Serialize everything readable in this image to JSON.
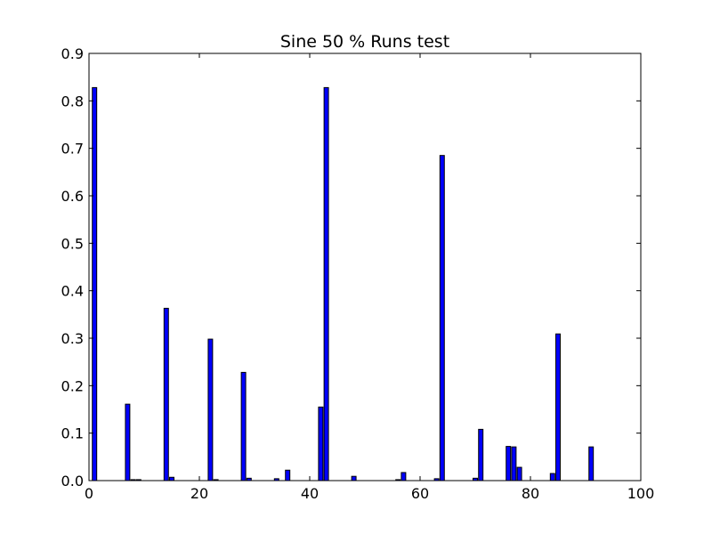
{
  "chart_data": {
    "type": "bar",
    "title": "Sine 50 % Runs test",
    "xlabel": "",
    "ylabel": "",
    "xlim": [
      0,
      100
    ],
    "ylim": [
      0,
      0.9
    ],
    "xticks": [
      0,
      20,
      40,
      60,
      80,
      100
    ],
    "yticks": [
      0.0,
      0.1,
      0.2,
      0.3,
      0.4,
      0.5,
      0.6,
      0.7,
      0.8,
      0.9
    ],
    "xtick_labels": [
      "0",
      "20",
      "40",
      "60",
      "80",
      "100"
    ],
    "ytick_labels": [
      "0.0",
      "0.1",
      "0.2",
      "0.3",
      "0.4",
      "0.5",
      "0.6",
      "0.7",
      "0.8",
      "0.9"
    ],
    "grid": false,
    "bar_color": "#0000ff",
    "edge_color": "#000000",
    "bar_width": 0.8,
    "x": [
      1,
      7,
      8,
      9,
      14,
      15,
      22,
      23,
      28,
      29,
      34,
      36,
      42,
      43,
      48,
      56,
      57,
      63,
      64,
      70,
      71,
      76,
      77,
      78,
      84,
      85,
      91
    ],
    "values": [
      0.828,
      0.161,
      0.002,
      0.002,
      0.363,
      0.007,
      0.298,
      0.002,
      0.228,
      0.005,
      0.004,
      0.022,
      0.155,
      0.828,
      0.009,
      0.002,
      0.017,
      0.004,
      0.685,
      0.005,
      0.108,
      0.072,
      0.071,
      0.028,
      0.015,
      0.309,
      0.071
    ]
  }
}
